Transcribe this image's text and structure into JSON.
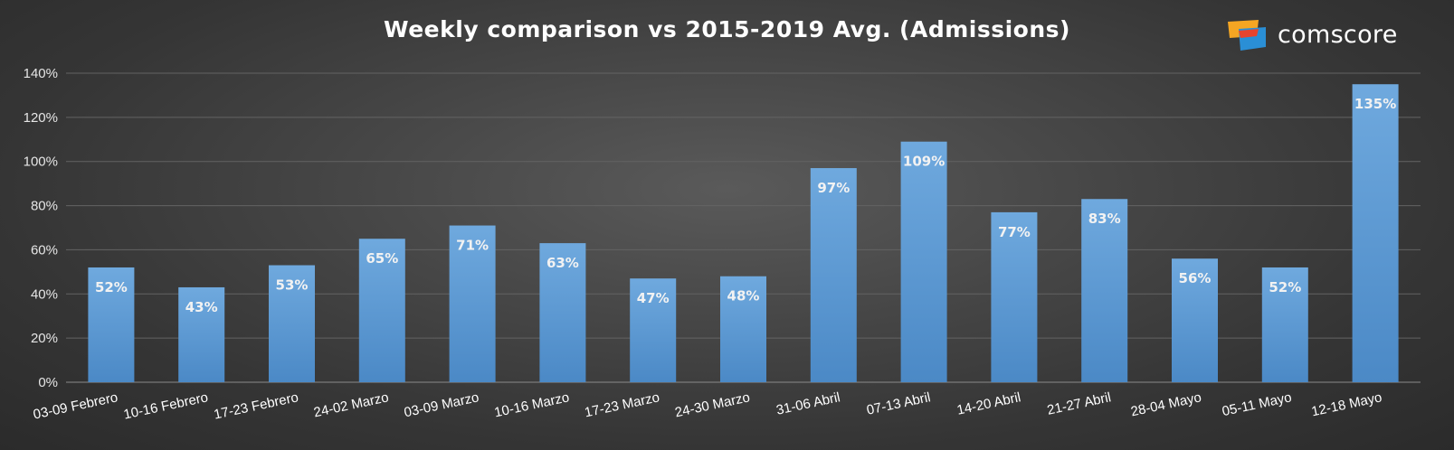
{
  "brand": {
    "name": "comscore",
    "colors": [
      "#f5a623",
      "#e8442e",
      "#2a8fd6"
    ]
  },
  "colors": {
    "bar": "#5b9bd5",
    "bar_light": "#6ea8dd",
    "bar_dark": "#4a88c5",
    "grid": "#6a6a6a",
    "text": "#ffffff"
  },
  "chart_data": {
    "type": "bar",
    "title": "Weekly comparison vs 2015-2019 Avg. (Admissions)",
    "xlabel": "",
    "ylabel": "",
    "categories": [
      "03-09 Febrero",
      "10-16 Febrero",
      "17-23 Febrero",
      "24-02 Marzo",
      "03-09 Marzo",
      "10-16 Marzo",
      "17-23 Marzo",
      "24-30 Marzo",
      "31-06 Abril",
      "07-13 Abril",
      "14-20 Abril",
      "21-27 Abril",
      "28-04 Mayo",
      "05-11 Mayo",
      "12-18 Mayo"
    ],
    "values": [
      52,
      43,
      53,
      65,
      71,
      63,
      47,
      48,
      97,
      109,
      77,
      83,
      56,
      52,
      135
    ],
    "data_labels": [
      "52%",
      "43%",
      "53%",
      "65%",
      "71%",
      "63%",
      "47%",
      "48%",
      "97%",
      "109%",
      "77%",
      "83%",
      "56%",
      "52%",
      "135%"
    ],
    "ylim": [
      0,
      140
    ],
    "yticks": [
      "0%",
      "20%",
      "40%",
      "60%",
      "80%",
      "100%",
      "120%",
      "140%"
    ],
    "grid": true,
    "legend": "none"
  }
}
